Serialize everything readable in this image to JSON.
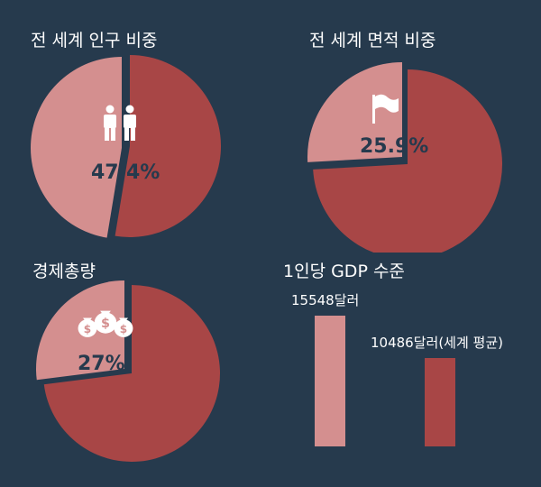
{
  "colors": {
    "background": "#263a4d",
    "highlight": "#d48f8f",
    "remainder": "#a84646",
    "label": "#263a4d"
  },
  "chart_data": [
    {
      "type": "pie",
      "title": "전 세계 인구 비중",
      "slices": [
        {
          "value": 47.4
        },
        {
          "value": 52.6
        }
      ],
      "highlight_label": "47.4%",
      "icon": "people-icon"
    },
    {
      "type": "pie",
      "title": "전 세계 면적 비중",
      "slices": [
        {
          "value": 25.9
        },
        {
          "value": 74.1
        }
      ],
      "highlight_label": "25.9%",
      "icon": "flag-icon"
    },
    {
      "type": "pie",
      "title": "경제총량",
      "slices": [
        {
          "value": 27
        },
        {
          "value": 73
        }
      ],
      "highlight_label": "27%",
      "icon": "money-bags-icon"
    },
    {
      "type": "bar",
      "title": "1인당 GDP 수준",
      "categories": [
        "",
        ""
      ],
      "values": [
        15548,
        10486
      ],
      "data_labels": [
        "15548달러",
        "10486달러(세계 평균)"
      ]
    }
  ]
}
